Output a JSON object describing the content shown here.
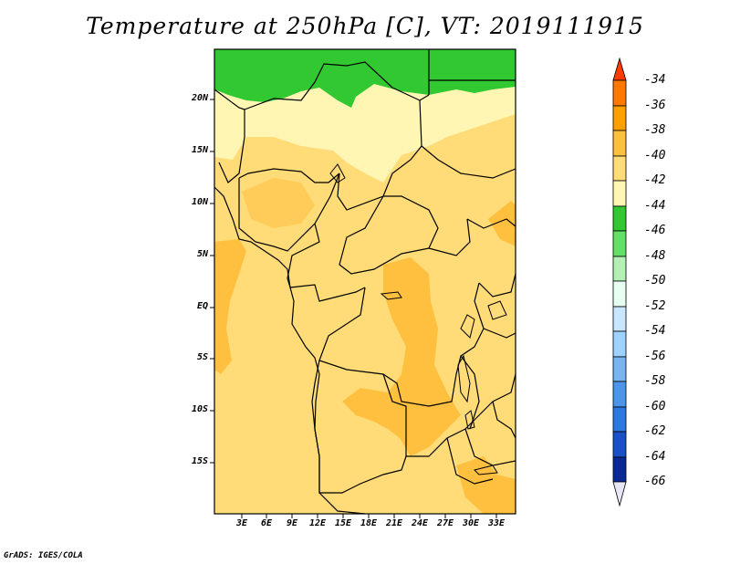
{
  "title": "Temperature at 250hPa [C], VT: 2019111915",
  "footer": "GrADS: IGES/COLA",
  "lat_labels": [
    "20N",
    "15N",
    "10N",
    "5N",
    "EQ",
    "5S",
    "10S",
    "15S"
  ],
  "lon_labels": [
    "3E",
    "6E",
    "9E",
    "12E",
    "15E",
    "18E",
    "21E",
    "24E",
    "27E",
    "30E",
    "33E"
  ],
  "colorbar": {
    "labels": [
      "-34",
      "-36",
      "-38",
      "-40",
      "-42",
      "-44",
      "-46",
      "-48",
      "-50",
      "-52",
      "-54",
      "-56",
      "-58",
      "-60",
      "-62",
      "-64",
      "-66"
    ],
    "colors": [
      "#ff3c00",
      "#ff7800",
      "#ffa000",
      "#ffc040",
      "#ffdc78",
      "#fff6b4",
      "#32c832",
      "#64e164",
      "#b4f0b4",
      "#e6fff0",
      "#c8e6ff",
      "#a0d2ff",
      "#78b4f0",
      "#4b96eb",
      "#2d78e1",
      "#1950c8",
      "#0a2896",
      "#000a6e",
      "#e6e6f5"
    ]
  },
  "map_fill": {
    "green": "#32c832",
    "pale": "#fff6b4",
    "light": "#ffdc78",
    "orange": "#ffc040"
  }
}
